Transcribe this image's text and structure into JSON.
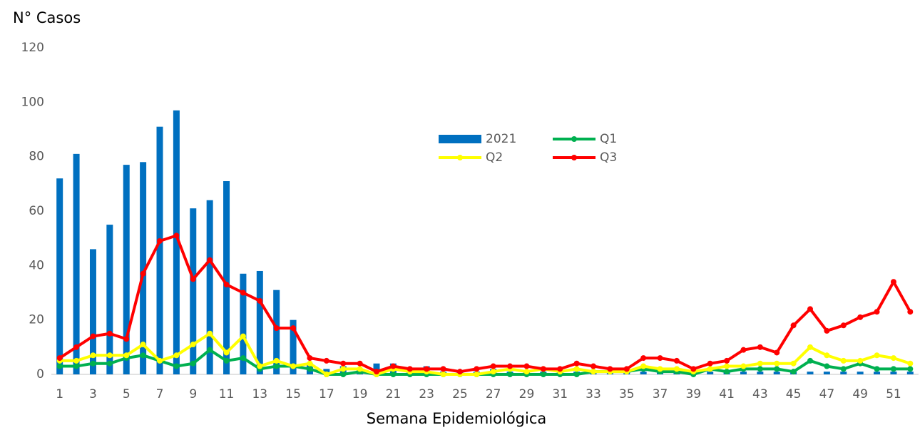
{
  "chart_data": {
    "type": "bar",
    "y_label": "N° Casos",
    "x_label": "Semana Epidemiológica",
    "categories": [
      1,
      null,
      3,
      null,
      5,
      null,
      7,
      null,
      9,
      null,
      11,
      null,
      13,
      null,
      15,
      null,
      17,
      null,
      19,
      null,
      21,
      null,
      23,
      null,
      25,
      null,
      27,
      null,
      29,
      null,
      31,
      null,
      33,
      null,
      35,
      null,
      37,
      null,
      39,
      null,
      41,
      null,
      43,
      null,
      45,
      null,
      47,
      null,
      49,
      null,
      51,
      null
    ],
    "ylim": [
      0,
      120
    ],
    "yticks": [
      0,
      20,
      40,
      60,
      80,
      100,
      120
    ],
    "legend": "upper center",
    "series": [
      {
        "name": "2021",
        "type": "bar",
        "color": "#0070c0",
        "values": [
          72,
          81,
          46,
          55,
          77,
          78,
          91,
          97,
          61,
          64,
          71,
          37,
          38,
          31,
          20,
          4,
          2,
          3,
          2,
          4,
          4,
          2,
          3,
          1,
          1,
          1,
          2,
          1,
          1,
          1,
          1,
          1,
          1,
          1,
          1,
          1,
          1,
          1,
          0,
          1,
          1,
          1,
          1,
          1,
          1,
          1,
          1,
          1,
          1,
          1,
          1,
          1
        ]
      },
      {
        "name": "Q1",
        "type": "line",
        "color": "#00b050",
        "values": [
          3,
          3,
          4,
          4,
          6,
          7,
          5,
          3,
          4,
          9,
          5,
          6,
          2,
          3,
          3,
          2,
          0,
          0,
          1,
          0,
          0,
          0,
          0,
          0,
          0,
          0,
          0,
          0,
          0,
          0,
          0,
          0,
          1,
          1,
          1,
          2,
          1,
          1,
          0,
          2,
          1,
          2,
          2,
          2,
          1,
          5,
          3,
          2,
          4,
          2,
          2,
          2
        ]
      },
      {
        "name": "Q2",
        "type": "line",
        "color": "#ffff00",
        "values": [
          5,
          5,
          7,
          7,
          7,
          11,
          5,
          7,
          11,
          15,
          8,
          14,
          3,
          5,
          3,
          4,
          0,
          2,
          2,
          0,
          2,
          1,
          1,
          0,
          0,
          0,
          1,
          2,
          1,
          2,
          1,
          2,
          1,
          1,
          1,
          3,
          2,
          2,
          1,
          2,
          3,
          3,
          4,
          4,
          4,
          10,
          7,
          5,
          5,
          7,
          6,
          4
        ]
      },
      {
        "name": "Q3",
        "type": "line",
        "color": "#ff0000",
        "values": [
          6,
          10,
          14,
          15,
          13,
          37,
          49,
          51,
          35,
          42,
          33,
          30,
          27,
          17,
          17,
          6,
          5,
          4,
          4,
          1,
          3,
          2,
          2,
          2,
          1,
          2,
          3,
          3,
          3,
          2,
          2,
          4,
          3,
          2,
          2,
          6,
          6,
          5,
          2,
          4,
          5,
          9,
          10,
          8,
          18,
          24,
          16,
          18,
          21,
          23,
          34,
          23
        ]
      }
    ]
  }
}
